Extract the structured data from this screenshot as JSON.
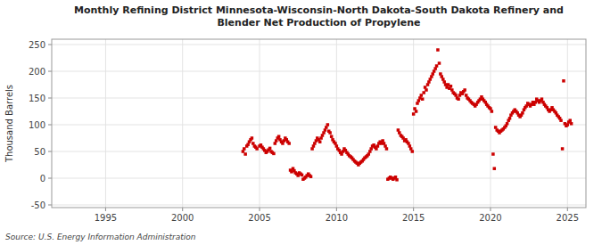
{
  "chart_data": {
    "type": "scatter",
    "title": "Monthly Refining District Minnesota-Wisconsin-North Dakota-South Dakota Refinery and\nBlender Net Production of Propylene",
    "ylabel": "Thousand Barrels",
    "source": "Source: U.S. Energy Information Administration",
    "color": "#cc0000",
    "marker": "square",
    "grid": true,
    "xlim": [
      1991.5,
      2026.2
    ],
    "ylim": [
      -55,
      260
    ],
    "xticks": [
      1995,
      2000,
      2005,
      2010,
      2015,
      2020,
      2025
    ],
    "yticks": [
      -50,
      0,
      50,
      100,
      150,
      200,
      250
    ],
    "x": [
      2003.92,
      2004.0,
      2004.08,
      2004.17,
      2004.25,
      2004.33,
      2004.42,
      2004.5,
      2004.58,
      2004.67,
      2004.75,
      2004.83,
      2005.0,
      2005.08,
      2005.17,
      2005.25,
      2005.33,
      2005.42,
      2005.5,
      2005.58,
      2005.67,
      2005.75,
      2005.83,
      2005.92,
      2006.0,
      2006.08,
      2006.17,
      2006.25,
      2006.33,
      2006.42,
      2006.5,
      2006.58,
      2006.67,
      2006.75,
      2006.83,
      2006.92,
      2007.0,
      2007.08,
      2007.17,
      2007.25,
      2007.33,
      2007.42,
      2007.5,
      2007.58,
      2007.67,
      2007.75,
      2007.83,
      2007.92,
      2008.0,
      2008.08,
      2008.17,
      2008.25,
      2008.33,
      2008.42,
      2008.5,
      2008.58,
      2008.67,
      2008.75,
      2008.83,
      2008.92,
      2009.0,
      2009.08,
      2009.17,
      2009.25,
      2009.33,
      2009.42,
      2009.5,
      2009.58,
      2009.67,
      2009.75,
      2009.83,
      2009.92,
      2010.0,
      2010.08,
      2010.17,
      2010.25,
      2010.33,
      2010.42,
      2010.5,
      2010.58,
      2010.67,
      2010.75,
      2010.83,
      2010.92,
      2011.0,
      2011.08,
      2011.17,
      2011.25,
      2011.33,
      2011.42,
      2011.5,
      2011.58,
      2011.67,
      2011.75,
      2011.83,
      2011.92,
      2012.0,
      2012.08,
      2012.17,
      2012.25,
      2012.33,
      2012.42,
      2012.5,
      2012.58,
      2012.67,
      2012.75,
      2012.83,
      2012.92,
      2013.0,
      2013.08,
      2013.17,
      2013.25,
      2013.33,
      2013.42,
      2013.5,
      2013.58,
      2013.67,
      2013.75,
      2013.83,
      2013.92,
      2014.0,
      2014.08,
      2014.17,
      2014.25,
      2014.33,
      2014.42,
      2014.5,
      2014.58,
      2014.67,
      2014.75,
      2014.83,
      2014.92,
      2015.0,
      2015.08,
      2015.17,
      2015.25,
      2015.33,
      2015.42,
      2015.5,
      2015.58,
      2015.67,
      2015.75,
      2015.83,
      2015.92,
      2016.0,
      2016.08,
      2016.17,
      2016.25,
      2016.33,
      2016.42,
      2016.5,
      2016.58,
      2016.67,
      2016.75,
      2016.83,
      2016.92,
      2017.0,
      2017.08,
      2017.17,
      2017.25,
      2017.33,
      2017.42,
      2017.5,
      2017.58,
      2017.67,
      2017.75,
      2017.83,
      2017.92,
      2018.0,
      2018.08,
      2018.17,
      2018.25,
      2018.33,
      2018.42,
      2018.5,
      2018.58,
      2018.67,
      2018.75,
      2018.83,
      2018.92,
      2019.0,
      2019.08,
      2019.17,
      2019.25,
      2019.33,
      2019.42,
      2019.5,
      2019.58,
      2019.67,
      2019.75,
      2019.83,
      2019.92,
      2020.0,
      2020.08,
      2020.17,
      2020.25,
      2020.33,
      2020.42,
      2020.5,
      2020.58,
      2020.67,
      2020.75,
      2020.83,
      2020.92,
      2021.0,
      2021.08,
      2021.17,
      2021.25,
      2021.33,
      2021.42,
      2021.5,
      2021.58,
      2021.67,
      2021.75,
      2021.83,
      2021.92,
      2022.0,
      2022.08,
      2022.17,
      2022.25,
      2022.33,
      2022.42,
      2022.5,
      2022.58,
      2022.67,
      2022.75,
      2022.83,
      2022.92,
      2023.0,
      2023.08,
      2023.17,
      2023.25,
      2023.33,
      2023.42,
      2023.5,
      2023.58,
      2023.67,
      2023.75,
      2023.83,
      2023.92,
      2024.0,
      2024.08,
      2024.17,
      2024.25,
      2024.33,
      2024.42,
      2024.5,
      2024.58,
      2024.67,
      2024.75,
      2024.83,
      2024.92,
      2025.0,
      2025.08,
      2025.17,
      2025.25
    ],
    "values": [
      50,
      55,
      45,
      60,
      63,
      68,
      72,
      75,
      65,
      60,
      58,
      55,
      60,
      62,
      58,
      55,
      52,
      48,
      50,
      53,
      56,
      50,
      48,
      46,
      65,
      70,
      75,
      78,
      72,
      68,
      65,
      70,
      75,
      72,
      68,
      65,
      15,
      12,
      18,
      14,
      10,
      8,
      5,
      10,
      8,
      6,
      -2,
      0,
      2,
      5,
      8,
      5,
      3,
      55,
      60,
      65,
      70,
      75,
      72,
      68,
      75,
      80,
      85,
      90,
      95,
      100,
      88,
      85,
      78,
      72,
      68,
      65,
      60,
      55,
      52,
      48,
      45,
      50,
      55,
      52,
      48,
      45,
      42,
      40,
      38,
      35,
      32,
      30,
      28,
      25,
      28,
      30,
      32,
      35,
      38,
      40,
      42,
      45,
      50,
      55,
      60,
      62,
      58,
      55,
      60,
      65,
      68,
      65,
      70,
      65,
      60,
      55,
      -2,
      0,
      2,
      0,
      -2,
      0,
      2,
      -3,
      90,
      85,
      80,
      78,
      75,
      70,
      72,
      68,
      65,
      60,
      55,
      50,
      120,
      130,
      125,
      140,
      145,
      150,
      155,
      148,
      160,
      170,
      165,
      175,
      180,
      185,
      190,
      195,
      200,
      205,
      210,
      240,
      215,
      195,
      190,
      185,
      180,
      175,
      170,
      175,
      168,
      172,
      165,
      160,
      158,
      155,
      150,
      148,
      155,
      160,
      158,
      162,
      165,
      155,
      150,
      148,
      145,
      142,
      140,
      138,
      135,
      138,
      142,
      145,
      148,
      152,
      148,
      145,
      142,
      138,
      135,
      132,
      130,
      125,
      45,
      18,
      95,
      90,
      88,
      85,
      88,
      90,
      92,
      95,
      98,
      102,
      108,
      112,
      118,
      122,
      125,
      128,
      125,
      122,
      118,
      115,
      118,
      122,
      128,
      132,
      135,
      140,
      138,
      135,
      138,
      142,
      138,
      142,
      148,
      145,
      142,
      145,
      148,
      142,
      138,
      135,
      132,
      128,
      125,
      128,
      132,
      128,
      125,
      122,
      118,
      115,
      112,
      108,
      55,
      182,
      102,
      98,
      100,
      105,
      108,
      102
    ]
  }
}
